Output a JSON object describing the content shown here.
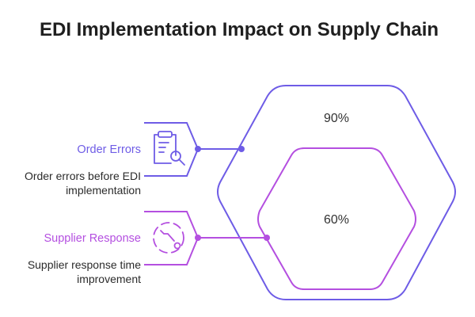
{
  "title": "EDI Implementation Impact on Supply Chain",
  "items": [
    {
      "title": "Order Errors",
      "description_line1": "Order errors before EDI",
      "description_line2": "implementation",
      "value_label": "90%",
      "value": 90,
      "color": "#6e5ce6",
      "icon": "clipboard-search-icon"
    },
    {
      "title": "Supplier Response",
      "description_line1": "Supplier response time",
      "description_line2": "improvement",
      "value_label": "60%",
      "value": 60,
      "color": "#b44fe0",
      "icon": "dashed-circle-arrow-icon"
    }
  ]
}
